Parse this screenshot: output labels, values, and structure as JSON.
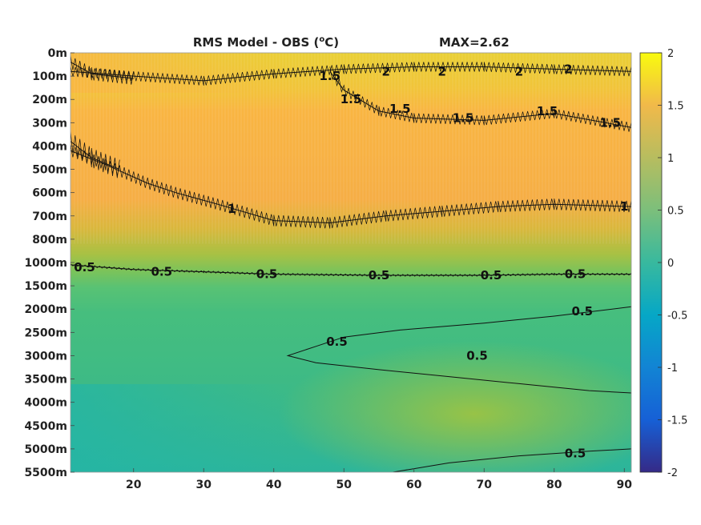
{
  "chart_data": {
    "type": "heatmap",
    "title": "RMS Model - OBS (",
    "title_sup": "o",
    "title_unit": "C)",
    "max_label": "MAX=2.62",
    "xlabel": "",
    "ylabel": "",
    "x_range": [
      11,
      91
    ],
    "x_ticks": [
      "20",
      "30",
      "40",
      "50",
      "60",
      "70",
      "80",
      "90"
    ],
    "x_tick_values": [
      20,
      30,
      40,
      50,
      60,
      70,
      80,
      90
    ],
    "y_ticks": [
      "0m",
      "100m",
      "200m",
      "300m",
      "400m",
      "500m",
      "600m",
      "700m",
      "800m",
      "1000m",
      "1500m",
      "2000m",
      "2500m",
      "3000m",
      "3500m",
      "4000m",
      "4500m",
      "5000m",
      "5500m"
    ],
    "colorbar": {
      "range": [
        -2,
        2
      ],
      "ticks": [
        "2",
        "1.5",
        "1",
        "0.5",
        "0",
        "-0.5",
        "-1",
        "-1.5",
        "-2"
      ],
      "tick_values": [
        2,
        1.5,
        1,
        0.5,
        0,
        -0.5,
        -1,
        -1.5,
        -2
      ],
      "colormap": "parula"
    },
    "contour_levels": [
      0.5,
      1,
      1.5,
      2
    ],
    "contour_labels": [
      {
        "text": "2",
        "x": 56,
        "depth_index": 0.8
      },
      {
        "text": "2",
        "x": 64,
        "depth_index": 0.8
      },
      {
        "text": "2",
        "x": 75,
        "depth_index": 0.8
      },
      {
        "text": "2",
        "x": 82,
        "depth_index": 0.7
      },
      {
        "text": "1.5",
        "x": 48,
        "depth_index": 1.0
      },
      {
        "text": "1.5",
        "x": 51,
        "depth_index": 2.0
      },
      {
        "text": "1.5",
        "x": 58,
        "depth_index": 2.4
      },
      {
        "text": "1.5",
        "x": 67,
        "depth_index": 2.8
      },
      {
        "text": "1.5",
        "x": 79,
        "depth_index": 2.5
      },
      {
        "text": "1.5",
        "x": 88,
        "depth_index": 3.0
      },
      {
        "text": "1",
        "x": 34,
        "depth_index": 6.7
      },
      {
        "text": "1",
        "x": 90,
        "depth_index": 6.6
      },
      {
        "text": "0.5",
        "x": 13,
        "depth_index": 9.2
      },
      {
        "text": "0.5",
        "x": 24,
        "depth_index": 9.4
      },
      {
        "text": "0.5",
        "x": 39,
        "depth_index": 9.5
      },
      {
        "text": "0.5",
        "x": 55,
        "depth_index": 9.55
      },
      {
        "text": "0.5",
        "x": 71,
        "depth_index": 9.55
      },
      {
        "text": "0.5",
        "x": 83,
        "depth_index": 9.5
      },
      {
        "text": "0.5",
        "x": 84,
        "depth_index": 11.1
      },
      {
        "text": "0.5",
        "x": 49,
        "depth_index": 12.4
      },
      {
        "text": "0.5",
        "x": 69,
        "depth_index": 13.0
      },
      {
        "text": "0.5",
        "x": 83,
        "depth_index": 17.2
      }
    ],
    "approx_field_values": {
      "surface_0_to_200m": 1.8,
      "upper_200_to_700m": 1.45,
      "mid_800_to_1000m": 0.9,
      "deep_1500_to_5500m": 0.35,
      "deep_core_near_3000m_east": 0.6,
      "bottom_west_5500m": 0.15
    }
  }
}
